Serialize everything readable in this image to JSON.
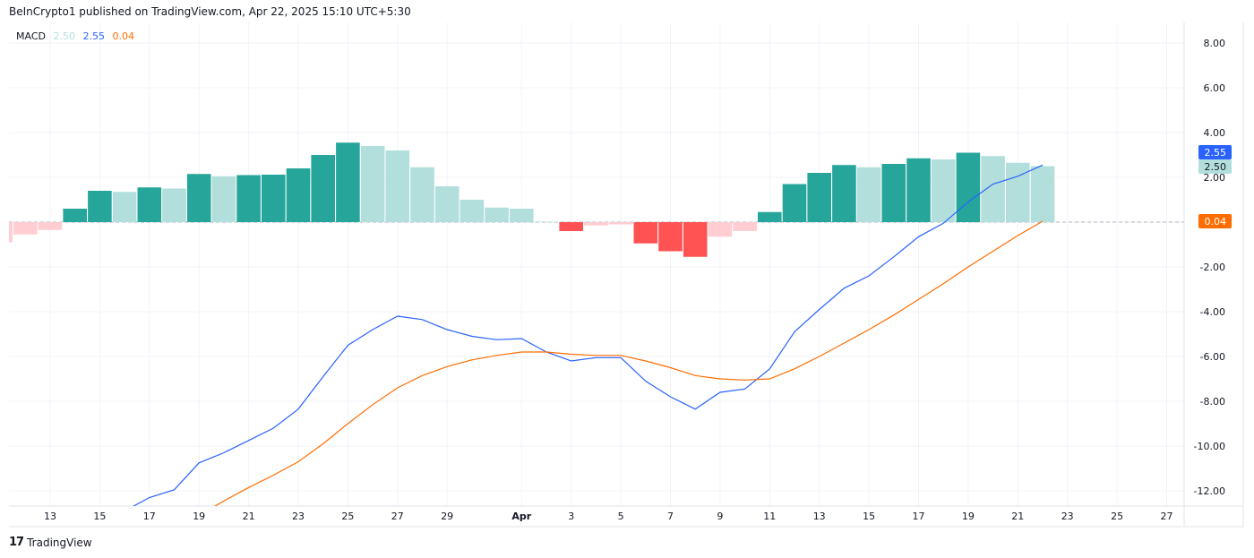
{
  "header": {
    "attribution": "BeInCrypto1 published on TradingView.com, Apr 22, 2025 15:10 UTC+5:30"
  },
  "legend": {
    "name": "MACD",
    "histogram_value": "2.50",
    "macd_value": "2.55",
    "signal_value": "0.04"
  },
  "footer": {
    "brand": "TradingView",
    "logo_text": "17"
  },
  "colors": {
    "hist_pos_up": "#26a69a",
    "hist_pos_down": "#b2dfdb",
    "hist_neg_down": "#ff5252",
    "hist_neg_up": "#ffcdd2",
    "macd": "#2962ff",
    "signal": "#ff6d00",
    "grid": "#f0f3fa"
  },
  "chart_data": {
    "type": "bar+line",
    "title": "",
    "ylim": [
      -12.9,
      9
    ],
    "grid": true,
    "y_ticks": [
      "8.00",
      "6.00",
      "4.00",
      "2.00",
      "-2.00",
      "-4.00",
      "-6.00",
      "-8.00",
      "-10.00",
      "-12.00"
    ],
    "x_ticks": [
      {
        "date": "2025-03-13",
        "label": "13"
      },
      {
        "date": "2025-03-15",
        "label": "15"
      },
      {
        "date": "2025-03-17",
        "label": "17"
      },
      {
        "date": "2025-03-19",
        "label": "19"
      },
      {
        "date": "2025-03-21",
        "label": "21"
      },
      {
        "date": "2025-03-23",
        "label": "23"
      },
      {
        "date": "2025-03-25",
        "label": "25"
      },
      {
        "date": "2025-03-27",
        "label": "27"
      },
      {
        "date": "2025-03-29",
        "label": "29"
      },
      {
        "date": "2025-04-01",
        "label": "Apr"
      },
      {
        "date": "2025-04-03",
        "label": "3"
      },
      {
        "date": "2025-04-05",
        "label": "5"
      },
      {
        "date": "2025-04-07",
        "label": "7"
      },
      {
        "date": "2025-04-09",
        "label": "9"
      },
      {
        "date": "2025-04-11",
        "label": "11"
      },
      {
        "date": "2025-04-13",
        "label": "13"
      },
      {
        "date": "2025-04-15",
        "label": "15"
      },
      {
        "date": "2025-04-17",
        "label": "17"
      },
      {
        "date": "2025-04-19",
        "label": "19"
      },
      {
        "date": "2025-04-21",
        "label": "21"
      },
      {
        "date": "2025-04-23",
        "label": "23"
      },
      {
        "date": "2025-04-25",
        "label": "25"
      },
      {
        "date": "2025-04-27",
        "label": "27"
      }
    ],
    "histogram": {
      "start_date": "2025-03-11",
      "values": [
        -0.9,
        -0.55,
        -0.35,
        0.6,
        1.4,
        1.35,
        1.55,
        1.5,
        2.15,
        2.05,
        2.1,
        2.12,
        2.4,
        3.0,
        3.55,
        3.4,
        3.2,
        2.45,
        1.6,
        1.0,
        0.65,
        0.6,
        0.02,
        -0.4,
        -0.15,
        -0.1,
        -0.95,
        -1.3,
        -1.55,
        -0.65,
        -0.4,
        0.45,
        1.7,
        2.2,
        2.55,
        2.45,
        2.6,
        2.85,
        2.8,
        3.1,
        2.95,
        2.65,
        2.5
      ]
    },
    "series": [
      {
        "name": "MACD",
        "start_date": "2025-03-16",
        "values": [
          -12.9,
          -12.3,
          -11.95,
          -10.75,
          -10.3,
          -9.75,
          -9.2,
          -8.35,
          -6.9,
          -5.5,
          -4.8,
          -4.2,
          -4.35,
          -4.8,
          -5.1,
          -5.25,
          -5.2,
          -5.8,
          -6.2,
          -6.05,
          -6.05,
          -7.1,
          -7.8,
          -8.35,
          -7.6,
          -7.45,
          -6.55,
          -4.9,
          -3.9,
          -2.95,
          -2.4,
          -1.55,
          -0.65,
          -0.05,
          0.9,
          1.7,
          2.05,
          2.55
        ]
      },
      {
        "name": "Signal",
        "start_date": "2025-03-19",
        "values": [
          -13.1,
          -12.45,
          -11.85,
          -11.3,
          -10.7,
          -9.9,
          -9.0,
          -8.15,
          -7.4,
          -6.85,
          -6.45,
          -6.15,
          -5.95,
          -5.8,
          -5.8,
          -5.9,
          -5.95,
          -5.95,
          -6.2,
          -6.5,
          -6.85,
          -7.0,
          -7.05,
          -7.0,
          -6.55,
          -6.0,
          -5.4,
          -4.8,
          -4.15,
          -3.45,
          -2.75,
          -2.0,
          -1.3,
          -0.6,
          0.04
        ]
      }
    ],
    "price_labels": [
      {
        "value": "2.55",
        "series": "MACD"
      },
      {
        "value": "2.50",
        "series": "Histogram"
      },
      {
        "value": "0.04",
        "series": "Signal"
      }
    ]
  }
}
